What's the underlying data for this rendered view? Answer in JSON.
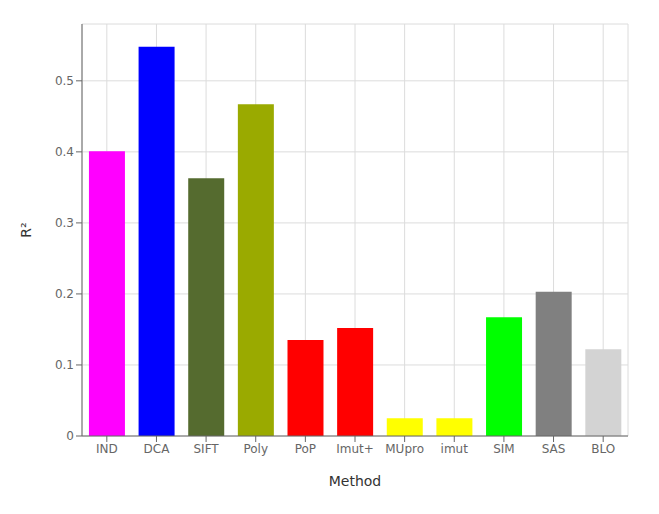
{
  "chart_data": {
    "type": "bar",
    "xlabel": "Method",
    "ylabel": "R²",
    "categories": [
      "IND",
      "DCA",
      "SIFT",
      "Poly",
      "PoP",
      "Imut+",
      "MUpro",
      "imut",
      "SIM",
      "SAS",
      "BLO"
    ],
    "values": [
      0.401,
      0.548,
      0.363,
      0.467,
      0.135,
      0.152,
      0.025,
      0.025,
      0.167,
      0.203,
      0.122
    ],
    "colors": [
      "#ff00ff",
      "#0000ff",
      "#556b2f",
      "#9aaa00",
      "#ff0000",
      "#ff0000",
      "#ffff00",
      "#ffff00",
      "#00ff00",
      "#808080",
      "#d3d3d3"
    ],
    "ylim": [
      0,
      0.58
    ],
    "yticks": [
      0,
      0.1,
      0.2,
      0.3,
      0.4,
      0.5
    ],
    "grid": true
  }
}
